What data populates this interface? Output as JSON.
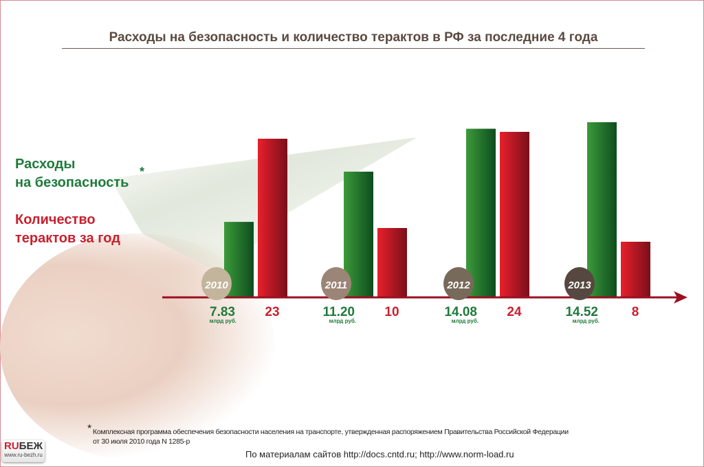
{
  "title": "Расходы на безопасность и количество терактов в РФ за последние 4 года",
  "legend": {
    "spending_line1": "Расходы",
    "spending_line2": "на безопасность",
    "asterisk": "*",
    "attacks_line1": "Количество",
    "attacks_line2": "терактов за год"
  },
  "colors": {
    "green": "#1f7a3a",
    "red": "#c8202e",
    "axis": "#9a1020"
  },
  "chart_data": {
    "type": "bar",
    "title": "Расходы на безопасность и количество терактов в РФ за последние 4 года",
    "categories": [
      "2010",
      "2011",
      "2012",
      "2013"
    ],
    "category_circle_colors": [
      "#c2b59c",
      "#9b8577",
      "#776a5b",
      "#564840"
    ],
    "series": [
      {
        "name": "Расходы на безопасность",
        "unit": "млрд руб.",
        "values": [
          7.83,
          11.2,
          14.08,
          14.52
        ],
        "labels": [
          "7.83",
          "11.20",
          "14.08",
          "14.52"
        ]
      },
      {
        "name": "Количество терактов за год",
        "values": [
          23,
          10,
          24,
          8
        ],
        "labels": [
          "23",
          "10",
          "24",
          "8"
        ]
      }
    ]
  },
  "unit_label": "млрд руб.",
  "footnote": {
    "asterisk": "*",
    "line1": "Комплексная программа обеспечения безопасности населения на транспорте, утвержденная распоряжением Правительства Российской Федерации",
    "line2": "от 30 июля 2010 года N 1285-р"
  },
  "source": "По материалам сайтов http://docs.cntd.ru; http://www.norm-load.ru",
  "logo": {
    "ru": "RU",
    "bezh": "БЕЖ",
    "url": "www.ru-bezh.ru"
  }
}
